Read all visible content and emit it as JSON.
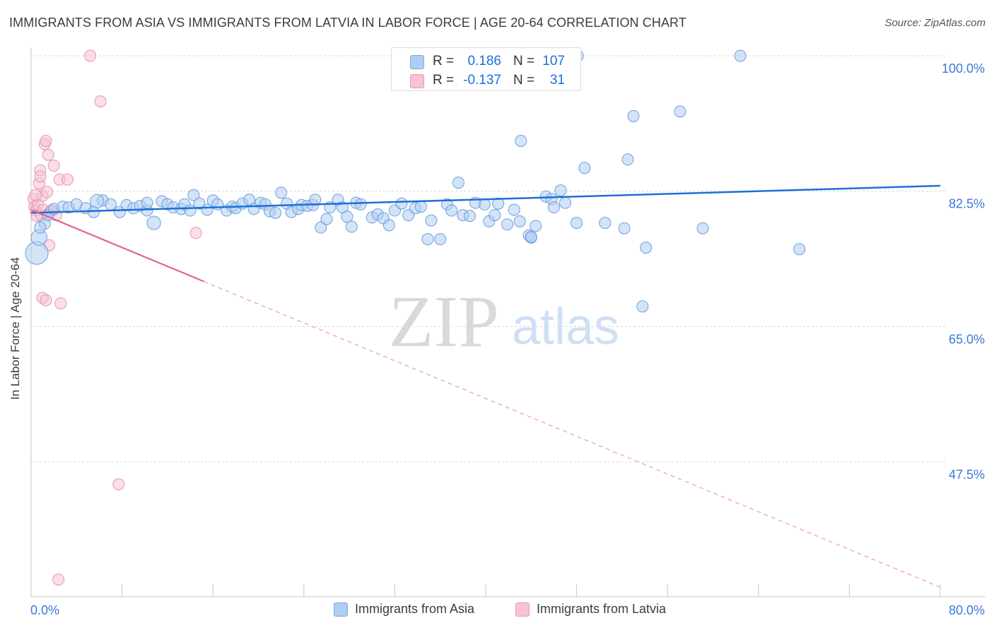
{
  "title": "IMMIGRANTS FROM ASIA VS IMMIGRANTS FROM LATVIA IN LABOR FORCE | AGE 20-64 CORRELATION CHART",
  "source": "Source: ZipAtlas.com",
  "watermark": {
    "zip": "ZIP",
    "atlas": "atlas"
  },
  "stats": [
    {
      "r_label": "R =",
      "r_value": "0.186",
      "n_label": "N =",
      "n_value": "107",
      "color": "#aecdf2",
      "border": "#7aa8e0"
    },
    {
      "r_label": "R =",
      "r_value": "-0.137",
      "n_label": "N =",
      "n_value": "31",
      "color": "#f7c3d3",
      "border": "#e596b0"
    }
  ],
  "legend": [
    {
      "label": "Immigrants from Asia",
      "color": "#aecdf2",
      "border": "#7aa8e0"
    },
    {
      "label": "Immigrants from Latvia",
      "color": "#f7c3d3",
      "border": "#e596b0"
    }
  ],
  "chart_data": {
    "type": "scatter",
    "title": "IMMIGRANTS FROM ASIA VS IMMIGRANTS FROM LATVIA IN LABOR FORCE | AGE 20-64 CORRELATION CHART",
    "xlabel": "",
    "ylabel": "In Labor Force | Age 20-64",
    "xlim": [
      0,
      80
    ],
    "ylim": [
      30,
      101.5
    ],
    "x_tick_labels": [
      "0.0%",
      "80.0%"
    ],
    "y_ticks": [
      47.5,
      65.0,
      82.5,
      100.0
    ],
    "y_tick_labels": [
      "47.5%",
      "65.0%",
      "82.5%",
      "100.0%"
    ],
    "grid": true,
    "colors": {
      "asia": "#1e6fd9",
      "latvia": "#e0648f",
      "tick_label": "#3b78d8"
    },
    "series": [
      {
        "name": "Immigrants from Asia",
        "points": [
          [
            0.5,
            74.5
          ],
          [
            0.7,
            76.5
          ],
          [
            1.2,
            78.3
          ],
          [
            1.5,
            79.4
          ],
          [
            2.0,
            80.2
          ],
          [
            2.8,
            80.5
          ],
          [
            3.3,
            80.4
          ],
          [
            4.0,
            80.8
          ],
          [
            4.8,
            80.3
          ],
          [
            5.5,
            79.8
          ],
          [
            6.3,
            81.3
          ],
          [
            7.0,
            80.8
          ],
          [
            7.8,
            79.8
          ],
          [
            8.4,
            80.7
          ],
          [
            9.0,
            80.3
          ],
          [
            9.6,
            80.6
          ],
          [
            10.2,
            80.0
          ],
          [
            10.2,
            81.0
          ],
          [
            10.8,
            78.4
          ],
          [
            11.5,
            81.2
          ],
          [
            12.0,
            80.8
          ],
          [
            12.5,
            80.4
          ],
          [
            13.2,
            80.2
          ],
          [
            13.5,
            80.8
          ],
          [
            14.0,
            80.0
          ],
          [
            14.3,
            82.0
          ],
          [
            14.8,
            80.9
          ],
          [
            15.5,
            80.1
          ],
          [
            16.0,
            81.3
          ],
          [
            16.4,
            80.8
          ],
          [
            17.2,
            80.0
          ],
          [
            17.7,
            80.5
          ],
          [
            18.0,
            80.3
          ],
          [
            18.6,
            80.9
          ],
          [
            19.2,
            81.4
          ],
          [
            19.6,
            80.2
          ],
          [
            20.2,
            81.0
          ],
          [
            20.6,
            80.8
          ],
          [
            21.0,
            79.9
          ],
          [
            21.5,
            79.7
          ],
          [
            22.0,
            82.3
          ],
          [
            22.5,
            80.9
          ],
          [
            22.9,
            79.8
          ],
          [
            23.5,
            80.2
          ],
          [
            23.8,
            80.7
          ],
          [
            24.3,
            80.6
          ],
          [
            24.8,
            80.7
          ],
          [
            25.0,
            81.4
          ],
          [
            25.5,
            77.8
          ],
          [
            26.0,
            78.9
          ],
          [
            26.3,
            80.4
          ],
          [
            27.0,
            81.4
          ],
          [
            27.4,
            80.4
          ],
          [
            27.8,
            79.2
          ],
          [
            28.2,
            77.9
          ],
          [
            28.6,
            81.0
          ],
          [
            29.0,
            80.8
          ],
          [
            30.0,
            79.1
          ],
          [
            30.5,
            79.5
          ],
          [
            31.0,
            79.0
          ],
          [
            31.5,
            78.1
          ],
          [
            32.0,
            80.0
          ],
          [
            32.6,
            80.9
          ],
          [
            33.2,
            79.4
          ],
          [
            33.8,
            80.3
          ],
          [
            34.3,
            80.5
          ],
          [
            34.9,
            76.3
          ],
          [
            35.2,
            78.7
          ],
          [
            36.0,
            76.3
          ],
          [
            36.6,
            80.8
          ],
          [
            37.0,
            80.0
          ],
          [
            37.6,
            83.6
          ],
          [
            38.0,
            79.4
          ],
          [
            38.6,
            79.3
          ],
          [
            39.1,
            81.0
          ],
          [
            39.9,
            80.8
          ],
          [
            40.3,
            78.6
          ],
          [
            40.8,
            79.4
          ],
          [
            41.1,
            80.9
          ],
          [
            41.9,
            78.2
          ],
          [
            42.5,
            80.1
          ],
          [
            43.0,
            78.6
          ],
          [
            43.8,
            76.8
          ],
          [
            44.0,
            76.5
          ],
          [
            44.4,
            78.0
          ],
          [
            45.3,
            81.8
          ],
          [
            45.8,
            81.5
          ],
          [
            46.0,
            80.4
          ],
          [
            46.6,
            82.6
          ],
          [
            47.0,
            81.0
          ],
          [
            48.0,
            78.4
          ],
          [
            48.1,
            100.0
          ],
          [
            48.7,
            85.5
          ],
          [
            50.5,
            78.4
          ],
          [
            52.2,
            77.7
          ],
          [
            52.5,
            86.6
          ],
          [
            53.0,
            92.2
          ],
          [
            54.1,
            75.2
          ],
          [
            53.8,
            67.6
          ],
          [
            57.1,
            92.8
          ],
          [
            59.1,
            77.7
          ],
          [
            62.4,
            100.0
          ],
          [
            67.6,
            75.0
          ],
          [
            43.1,
            89.0
          ],
          [
            44.0,
            76.6
          ],
          [
            5.8,
            81.2
          ],
          [
            0.8,
            77.8
          ]
        ],
        "sizes": [
          2.0,
          1.4,
          1.0,
          1.0,
          1.0,
          1.0,
          1.0,
          1.0,
          1.0,
          1.0,
          1.0,
          1.0,
          1.0,
          1.0,
          1.0,
          1.0,
          1.0,
          1.0,
          1.2,
          1.0,
          1.0,
          1.0,
          1.0,
          1.0,
          1.0,
          1.0,
          1.0,
          1.0,
          1.0,
          1.0,
          1.0,
          1.0,
          1.0,
          1.0,
          1.0,
          1.0,
          1.0,
          1.0,
          1.0,
          1.0,
          1.0,
          1.0,
          1.0,
          1.0,
          1.0,
          1.0,
          1.0,
          1.0,
          1.0,
          1.0,
          1.0,
          1.0,
          1.0,
          1.0,
          1.0,
          1.0,
          1.0,
          1.0,
          1.0,
          1.0,
          1.0,
          1.0,
          1.0,
          1.0,
          1.0,
          1.0,
          1.0,
          1.0,
          1.0,
          1.0,
          1.0,
          1.0,
          1.0,
          1.0,
          1.0,
          1.0,
          1.0,
          1.0,
          1.0,
          1.0,
          1.0,
          1.0,
          1.0,
          1.0,
          1.0,
          1.0,
          1.0,
          1.0,
          1.0,
          1.0,
          1.0,
          1.0,
          1.0,
          1.0,
          1.0,
          1.0,
          1.0,
          1.0,
          1.0,
          1.0,
          1.0,
          1.0,
          1.0,
          1.0,
          1.0,
          1.2,
          1.0
        ],
        "trend": {
          "x": [
            0,
            80
          ],
          "y": [
            79.7,
            83.2
          ],
          "extrapolated_from_x": null
        }
      },
      {
        "name": "Immigrants from Latvia",
        "points": [
          [
            0.2,
            81.5
          ],
          [
            0.3,
            80.5
          ],
          [
            0.4,
            80.0
          ],
          [
            0.5,
            79.3
          ],
          [
            0.6,
            80.8
          ],
          [
            0.7,
            83.5
          ],
          [
            0.8,
            85.2
          ],
          [
            0.9,
            79.4
          ],
          [
            1.0,
            81.9
          ],
          [
            1.1,
            80.1
          ],
          [
            1.2,
            88.6
          ],
          [
            1.3,
            89.0
          ],
          [
            1.4,
            82.4
          ],
          [
            1.5,
            87.2
          ],
          [
            1.6,
            75.5
          ],
          [
            1.7,
            79.9
          ],
          [
            2.0,
            85.8
          ],
          [
            2.2,
            79.4
          ],
          [
            2.5,
            84.0
          ],
          [
            3.2,
            84.0
          ],
          [
            1.0,
            68.7
          ],
          [
            1.3,
            68.4
          ],
          [
            2.6,
            68.0
          ],
          [
            5.2,
            100.0
          ],
          [
            6.1,
            94.1
          ],
          [
            7.7,
            44.6
          ],
          [
            14.5,
            77.1
          ],
          [
            2.4,
            32.3
          ],
          [
            0.8,
            84.4
          ],
          [
            1.8,
            80.0
          ],
          [
            0.4,
            82.0
          ]
        ],
        "sizes": [
          1.0,
          1.0,
          1.0,
          1.0,
          1.0,
          1.0,
          1.0,
          1.0,
          1.0,
          1.0,
          1.0,
          1.0,
          1.0,
          1.0,
          1.0,
          1.0,
          1.0,
          1.0,
          1.0,
          1.0,
          1.0,
          1.0,
          1.0,
          1.0,
          1.0,
          1.0,
          1.0,
          1.0,
          1.0,
          1.0,
          1.0
        ],
        "trend": {
          "x": [
            0,
            80
          ],
          "y": [
            80.1,
            31.3
          ],
          "solid_until_x": 15.2
        }
      }
    ]
  }
}
